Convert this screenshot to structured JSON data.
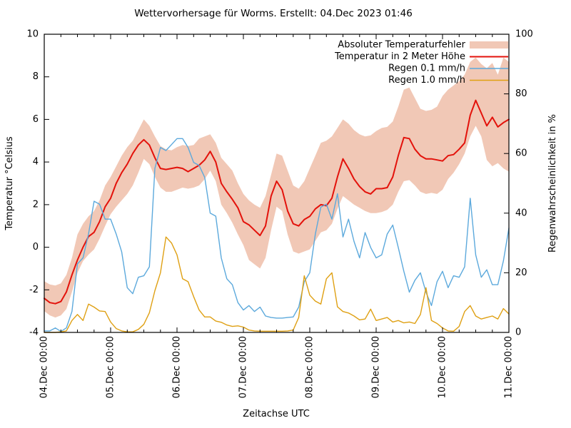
{
  "chart_data": {
    "type": "line",
    "title": "Wettervorhersage für Worms. Erstellt: 04.Dec 2023 01:46",
    "xlabel": "Zeitachse UTC",
    "ylabel_left": "Temperatur °Celsius",
    "ylabel_right": "Regenwahrscheinlichkeit in %",
    "x_tick_labels": [
      "04.Dec 00:00",
      "05.Dec 00:00",
      "06.Dec 00:00",
      "07.Dec 00:00",
      "08.Dec 00:00",
      "09.Dec 00:00",
      "10.Dec 00:00",
      "11.Dec 00:00"
    ],
    "x_range_hours": [
      0,
      168
    ],
    "x_step_hours": 2,
    "x_major_tick_hours": 24,
    "x_minor_tick_hours": 6,
    "ylim_left": [
      -4,
      10
    ],
    "ylim_right": [
      0,
      100
    ],
    "y_left_ticks": [
      -4,
      -2,
      0,
      2,
      4,
      6,
      8,
      10
    ],
    "y_right_ticks": [
      0,
      20,
      40,
      60,
      80,
      100
    ],
    "grid": false,
    "legend_position": "top-right-inside",
    "background_color": "#ffffff",
    "border_color": "#000000",
    "series": [
      {
        "name": "Absoluter Temperaturfehler",
        "type": "band",
        "axis": "left",
        "color": "#f1c8b6",
        "upper": [
          -1.6,
          -1.75,
          -1.8,
          -1.7,
          -1.3,
          -0.5,
          0.6,
          1.1,
          1.45,
          1.7,
          2.2,
          2.9,
          3.3,
          3.8,
          4.3,
          4.7,
          5.0,
          5.5,
          6.0,
          5.7,
          5.2,
          4.75,
          4.6,
          4.55,
          4.7,
          4.8,
          4.75,
          4.8,
          5.1,
          5.2,
          5.3,
          4.9,
          4.2,
          3.9,
          3.6,
          3.0,
          2.5,
          2.2,
          2.0,
          1.85,
          2.4,
          3.4,
          4.4,
          4.3,
          3.6,
          2.9,
          2.75,
          3.1,
          3.7,
          4.3,
          4.9,
          5.0,
          5.2,
          5.6,
          6.0,
          5.8,
          5.5,
          5.3,
          5.2,
          5.25,
          5.45,
          5.6,
          5.65,
          5.9,
          6.6,
          7.4,
          7.5,
          7.0,
          6.5,
          6.4,
          6.45,
          6.6,
          7.1,
          7.4,
          7.6,
          7.8,
          8.1,
          8.7,
          8.9,
          8.6,
          8.4,
          8.65,
          8.1,
          8.9,
          8.7
        ],
        "lower": [
          -3.0,
          -3.2,
          -3.3,
          -3.2,
          -2.9,
          -2.1,
          -1.2,
          -0.65,
          -0.35,
          -0.1,
          0.4,
          1.0,
          1.55,
          1.9,
          2.2,
          2.5,
          2.9,
          3.5,
          4.15,
          3.9,
          3.3,
          2.8,
          2.6,
          2.6,
          2.7,
          2.8,
          2.75,
          2.8,
          2.9,
          3.2,
          3.6,
          3.1,
          2.0,
          1.6,
          1.15,
          0.6,
          0.1,
          -0.6,
          -0.8,
          -1.0,
          -0.5,
          0.8,
          1.9,
          1.7,
          0.6,
          -0.2,
          -0.3,
          -0.2,
          -0.1,
          0.3,
          0.7,
          0.8,
          1.1,
          1.8,
          2.4,
          2.2,
          2.0,
          1.85,
          1.7,
          1.6,
          1.6,
          1.65,
          1.75,
          2.0,
          2.6,
          3.1,
          3.15,
          2.9,
          2.6,
          2.5,
          2.55,
          2.5,
          2.7,
          3.2,
          3.5,
          3.9,
          4.4,
          5.2,
          5.7,
          5.2,
          4.1,
          3.8,
          3.95,
          3.7,
          3.55
        ]
      },
      {
        "name": "Temperatur in 2 Meter Höhe",
        "type": "line",
        "axis": "left",
        "color": "#e3120b",
        "values": [
          -2.4,
          -2.6,
          -2.65,
          -2.55,
          -2.1,
          -1.3,
          -0.6,
          0.0,
          0.5,
          0.7,
          1.2,
          1.9,
          2.3,
          3.0,
          3.5,
          3.9,
          4.4,
          4.8,
          5.05,
          4.8,
          4.2,
          3.7,
          3.65,
          3.7,
          3.75,
          3.7,
          3.55,
          3.7,
          3.85,
          4.1,
          4.5,
          4.0,
          3.0,
          2.6,
          2.25,
          1.85,
          1.2,
          1.05,
          0.8,
          0.55,
          1.0,
          2.4,
          3.1,
          2.7,
          1.7,
          1.1,
          1.0,
          1.3,
          1.45,
          1.8,
          2.0,
          1.95,
          2.3,
          3.3,
          4.15,
          3.7,
          3.2,
          2.85,
          2.6,
          2.5,
          2.75,
          2.75,
          2.8,
          3.3,
          4.3,
          5.15,
          5.1,
          4.6,
          4.3,
          4.15,
          4.15,
          4.1,
          4.05,
          4.3,
          4.35,
          4.6,
          4.9,
          6.2,
          6.9,
          6.3,
          5.7,
          6.1,
          5.65,
          5.85,
          6.0
        ]
      },
      {
        "name": "Regen 0.1 mm/h",
        "type": "line",
        "axis": "right",
        "color": "#5ca9dc",
        "values": [
          0.5,
          0.5,
          1.5,
          0.3,
          1.5,
          7,
          23,
          25,
          33,
          44,
          43,
          38,
          38,
          33,
          27,
          15,
          13,
          18.5,
          19,
          22,
          55,
          62,
          61,
          63,
          65,
          65,
          62,
          57,
          56,
          52,
          40,
          39,
          25,
          18,
          16,
          10,
          7.5,
          9,
          7,
          8.5,
          5.5,
          5,
          4.8,
          4.8,
          5,
          5.2,
          8.5,
          17,
          20,
          33,
          42,
          43,
          38,
          46.5,
          32,
          38,
          30.5,
          25,
          33.5,
          28.5,
          25,
          26,
          33,
          36,
          28.5,
          20.5,
          13.5,
          17.5,
          20,
          13.5,
          9,
          17,
          20.5,
          15,
          19,
          18.5,
          22,
          45,
          26,
          18.5,
          21,
          16,
          16,
          24,
          35
        ]
      },
      {
        "name": "Regen 1.0 mm/h",
        "type": "line",
        "axis": "right",
        "color": "#dfa013",
        "values": [
          0,
          0,
          0,
          0.2,
          0.5,
          4,
          6,
          4,
          9.5,
          8.5,
          7.2,
          7,
          3.5,
          1.3,
          0.5,
          0.2,
          0.2,
          1,
          2.7,
          6.6,
          14,
          20,
          32,
          30,
          26,
          18,
          17,
          12,
          7.5,
          5.2,
          5.2,
          3.8,
          3.4,
          2.5,
          2,
          2.2,
          1.8,
          0.8,
          0.5,
          0.4,
          0.4,
          0.4,
          0.4,
          0.4,
          0.5,
          0.8,
          5,
          19,
          12.5,
          10.5,
          9.5,
          18,
          20,
          8.6,
          7,
          6.5,
          5.5,
          4.2,
          4.5,
          7.8,
          4,
          4.5,
          5,
          3.5,
          4,
          3.2,
          3.5,
          3,
          6,
          15,
          4,
          3,
          1.5,
          0.5,
          0.4,
          2,
          7,
          9,
          5.5,
          4.5,
          5,
          5.5,
          4.5,
          8,
          6.2
        ]
      }
    ]
  }
}
